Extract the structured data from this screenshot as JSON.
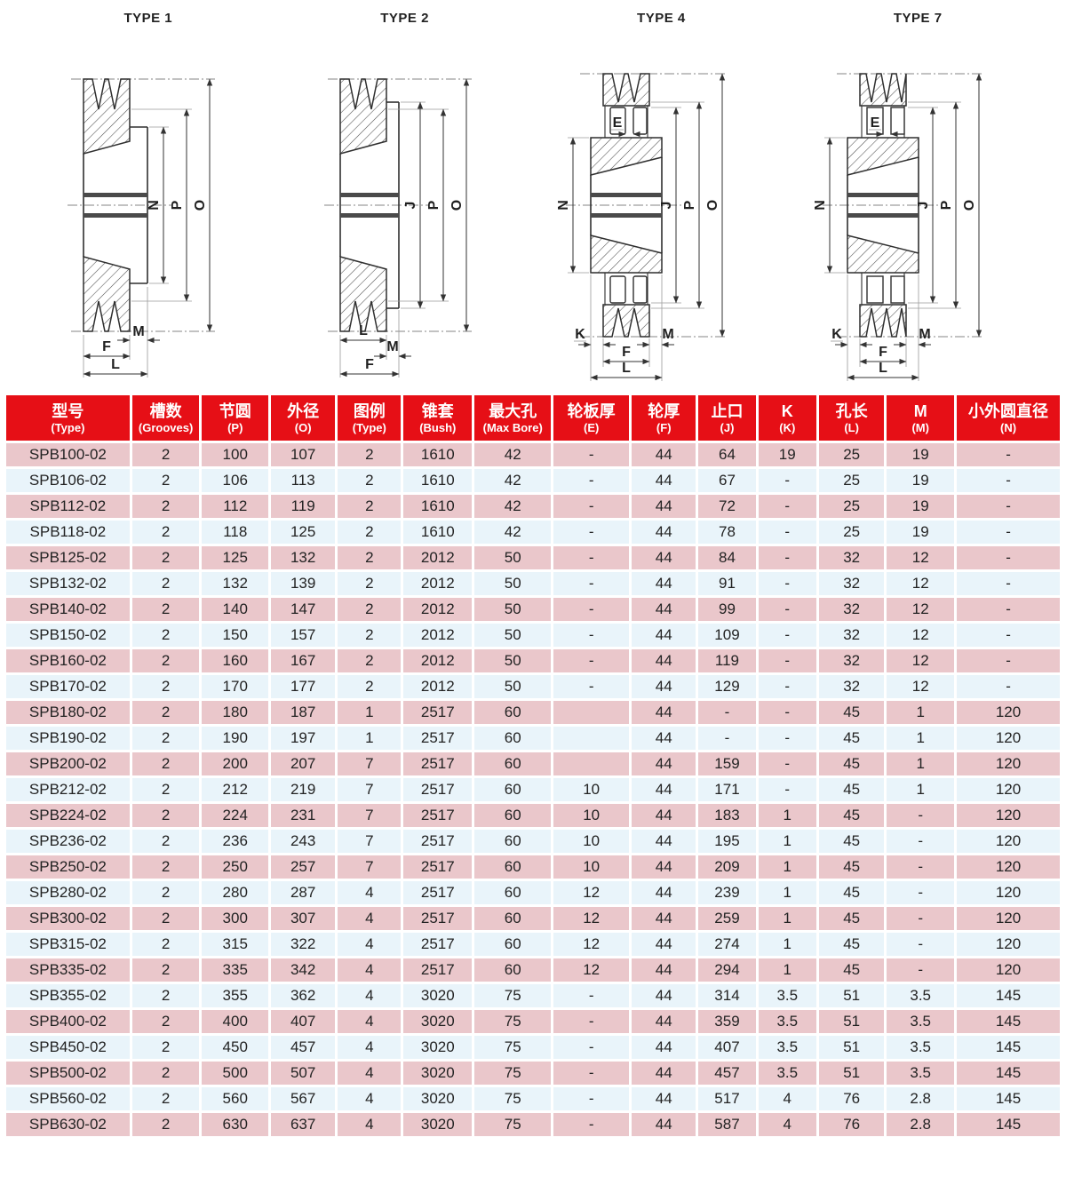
{
  "diagrams": [
    {
      "title": "TYPE 1",
      "labels": {
        "n": "N",
        "p": "P",
        "o": "O",
        "m": "M",
        "f": "F",
        "l": "L"
      }
    },
    {
      "title": "TYPE 2",
      "labels": {
        "j": "J",
        "p": "P",
        "o": "O",
        "l": "L",
        "m": "M",
        "f": "F"
      }
    },
    {
      "title": "TYPE 4",
      "labels": {
        "e": "E",
        "n": "N",
        "j": "J",
        "p": "P",
        "o": "O",
        "k": "K",
        "m": "M",
        "f": "F",
        "l": "L"
      }
    },
    {
      "title": "TYPE 7",
      "labels": {
        "e": "E",
        "n": "N",
        "j": "J",
        "p": "P",
        "o": "O",
        "k": "K",
        "m": "M",
        "f": "F",
        "l": "L"
      }
    }
  ],
  "table": {
    "headers": [
      {
        "zh": "型号",
        "en": "(Type)"
      },
      {
        "zh": "槽数",
        "en": "(Grooves)"
      },
      {
        "zh": "节圆",
        "en": "(P)"
      },
      {
        "zh": "外径",
        "en": "(O)"
      },
      {
        "zh": "图例",
        "en": "(Type)"
      },
      {
        "zh": "锥套",
        "en": "(Bush)"
      },
      {
        "zh": "最大孔",
        "en": "(Max Bore)"
      },
      {
        "zh": "轮板厚",
        "en": "(E)"
      },
      {
        "zh": "轮厚",
        "en": "(F)"
      },
      {
        "zh": "止口",
        "en": "(J)"
      },
      {
        "zh": "K",
        "en": "(K)"
      },
      {
        "zh": "孔长",
        "en": "(L)"
      },
      {
        "zh": "M",
        "en": "(M)"
      },
      {
        "zh": "小外圆直径",
        "en": "(N)"
      }
    ],
    "rows": [
      [
        "SPB100-02",
        "2",
        "100",
        "107",
        "2",
        "1610",
        "42",
        "-",
        "44",
        "64",
        "19",
        "25",
        "19",
        "-"
      ],
      [
        "SPB106-02",
        "2",
        "106",
        "113",
        "2",
        "1610",
        "42",
        "-",
        "44",
        "67",
        "-",
        "25",
        "19",
        "-"
      ],
      [
        "SPB112-02",
        "2",
        "112",
        "119",
        "2",
        "1610",
        "42",
        "-",
        "44",
        "72",
        "-",
        "25",
        "19",
        "-"
      ],
      [
        "SPB118-02",
        "2",
        "118",
        "125",
        "2",
        "1610",
        "42",
        "-",
        "44",
        "78",
        "-",
        "25",
        "19",
        "-"
      ],
      [
        "SPB125-02",
        "2",
        "125",
        "132",
        "2",
        "2012",
        "50",
        "-",
        "44",
        "84",
        "-",
        "32",
        "12",
        "-"
      ],
      [
        "SPB132-02",
        "2",
        "132",
        "139",
        "2",
        "2012",
        "50",
        "-",
        "44",
        "91",
        "-",
        "32",
        "12",
        "-"
      ],
      [
        "SPB140-02",
        "2",
        "140",
        "147",
        "2",
        "2012",
        "50",
        "-",
        "44",
        "99",
        "-",
        "32",
        "12",
        "-"
      ],
      [
        "SPB150-02",
        "2",
        "150",
        "157",
        "2",
        "2012",
        "50",
        "-",
        "44",
        "109",
        "-",
        "32",
        "12",
        "-"
      ],
      [
        "SPB160-02",
        "2",
        "160",
        "167",
        "2",
        "2012",
        "50",
        "-",
        "44",
        "119",
        "-",
        "32",
        "12",
        "-"
      ],
      [
        "SPB170-02",
        "2",
        "170",
        "177",
        "2",
        "2012",
        "50",
        "-",
        "44",
        "129",
        "-",
        "32",
        "12",
        "-"
      ],
      [
        "SPB180-02",
        "2",
        "180",
        "187",
        "1",
        "2517",
        "60",
        "",
        "44",
        "-",
        "-",
        "45",
        "1",
        "120"
      ],
      [
        "SPB190-02",
        "2",
        "190",
        "197",
        "1",
        "2517",
        "60",
        "",
        "44",
        "-",
        "-",
        "45",
        "1",
        "120"
      ],
      [
        "SPB200-02",
        "2",
        "200",
        "207",
        "7",
        "2517",
        "60",
        "",
        "44",
        "159",
        "-",
        "45",
        "1",
        "120"
      ],
      [
        "SPB212-02",
        "2",
        "212",
        "219",
        "7",
        "2517",
        "60",
        "10",
        "44",
        "171",
        "-",
        "45",
        "1",
        "120"
      ],
      [
        "SPB224-02",
        "2",
        "224",
        "231",
        "7",
        "2517",
        "60",
        "10",
        "44",
        "183",
        "1",
        "45",
        "-",
        "120"
      ],
      [
        "SPB236-02",
        "2",
        "236",
        "243",
        "7",
        "2517",
        "60",
        "10",
        "44",
        "195",
        "1",
        "45",
        "-",
        "120"
      ],
      [
        "SPB250-02",
        "2",
        "250",
        "257",
        "7",
        "2517",
        "60",
        "10",
        "44",
        "209",
        "1",
        "45",
        "-",
        "120"
      ],
      [
        "SPB280-02",
        "2",
        "280",
        "287",
        "4",
        "2517",
        "60",
        "12",
        "44",
        "239",
        "1",
        "45",
        "-",
        "120"
      ],
      [
        "SPB300-02",
        "2",
        "300",
        "307",
        "4",
        "2517",
        "60",
        "12",
        "44",
        "259",
        "1",
        "45",
        "-",
        "120"
      ],
      [
        "SPB315-02",
        "2",
        "315",
        "322",
        "4",
        "2517",
        "60",
        "12",
        "44",
        "274",
        "1",
        "45",
        "-",
        "120"
      ],
      [
        "SPB335-02",
        "2",
        "335",
        "342",
        "4",
        "2517",
        "60",
        "12",
        "44",
        "294",
        "1",
        "45",
        "-",
        "120"
      ],
      [
        "SPB355-02",
        "2",
        "355",
        "362",
        "4",
        "3020",
        "75",
        "-",
        "44",
        "314",
        "3.5",
        "51",
        "3.5",
        "145"
      ],
      [
        "SPB400-02",
        "2",
        "400",
        "407",
        "4",
        "3020",
        "75",
        "-",
        "44",
        "359",
        "3.5",
        "51",
        "3.5",
        "145"
      ],
      [
        "SPB450-02",
        "2",
        "450",
        "457",
        "4",
        "3020",
        "75",
        "-",
        "44",
        "407",
        "3.5",
        "51",
        "3.5",
        "145"
      ],
      [
        "SPB500-02",
        "2",
        "500",
        "507",
        "4",
        "3020",
        "75",
        "-",
        "44",
        "457",
        "3.5",
        "51",
        "3.5",
        "145"
      ],
      [
        "SPB560-02",
        "2",
        "560",
        "567",
        "4",
        "3020",
        "75",
        "-",
        "44",
        "517",
        "4",
        "76",
        "2.8",
        "145"
      ],
      [
        "SPB630-02",
        "2",
        "630",
        "637",
        "4",
        "3020",
        "75",
        "-",
        "44",
        "587",
        "4",
        "76",
        "2.8",
        "145"
      ]
    ]
  }
}
